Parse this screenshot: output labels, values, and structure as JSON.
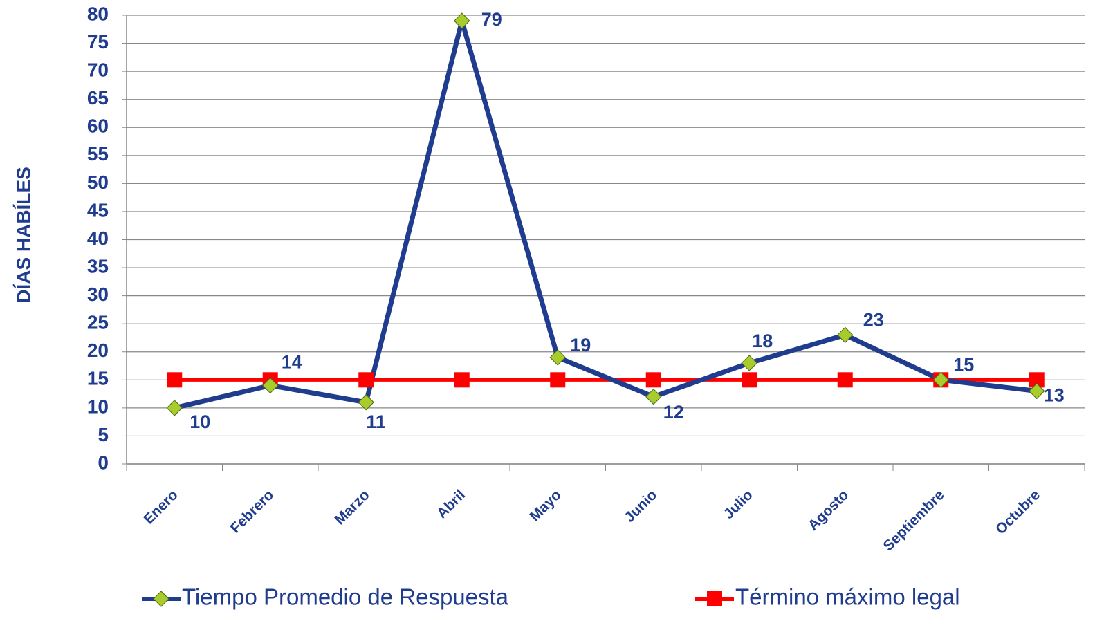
{
  "chart_data": {
    "type": "line",
    "y_label": "DÍAS HABÍLES",
    "categories": [
      "Enero",
      "Febrero",
      "Marzo",
      "Abril",
      "Mayo",
      "Junio",
      "Julio",
      "Agosto",
      "Septiembre",
      "Octubre"
    ],
    "series": [
      {
        "name": "Tiempo Promedio de Respuesta",
        "color": "#1f3c8f",
        "marker": "diamond",
        "marker_color": "#a8cc2c",
        "data_labels": true,
        "values": [
          10,
          14,
          11,
          79,
          19,
          12,
          18,
          23,
          15,
          13
        ]
      },
      {
        "name": "Término máximo legal",
        "color": "#ff0000",
        "marker": "square",
        "marker_color": "#ff0000",
        "data_labels": false,
        "values": [
          15,
          15,
          15,
          15,
          15,
          15,
          15,
          15,
          15,
          15
        ]
      }
    ],
    "ylim": [
      0,
      80
    ],
    "yticks": [
      0,
      5,
      10,
      15,
      20,
      25,
      30,
      35,
      40,
      45,
      50,
      55,
      60,
      65,
      70,
      75,
      80
    ],
    "grid": true,
    "legend": "bottom"
  }
}
